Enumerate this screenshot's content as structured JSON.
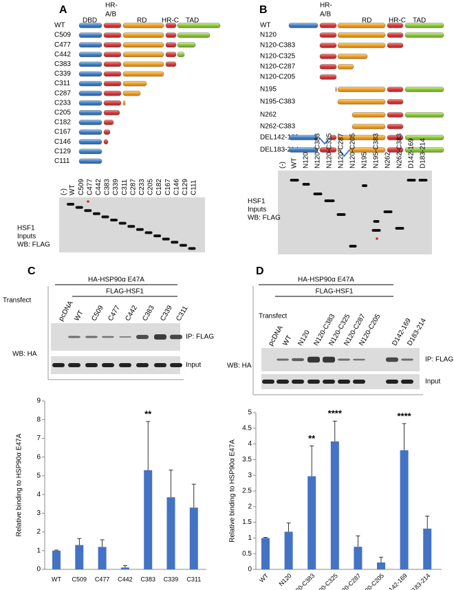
{
  "panels": {
    "A": {
      "label": "A",
      "domains": {
        "dbd": "DBD",
        "hr_ab": [
          "HR-",
          "A/B"
        ],
        "rd": "RD",
        "hr_c": "HR-C",
        "tad": "TAD"
      },
      "constructs": [
        "WT",
        "C509",
        "C477",
        "C442",
        "C383",
        "C339",
        "C311",
        "C287",
        "C233",
        "C205",
        "C182",
        "C167",
        "C146",
        "C129",
        "C111"
      ],
      "gel": {
        "lanes": [
          "(-)",
          "WT",
          "C509",
          "C477",
          "C442",
          "C383",
          "C339",
          "C311",
          "C287",
          "C233",
          "C205",
          "C182",
          "C167",
          "C146",
          "C129",
          "C111"
        ],
        "caption": [
          "HSF1",
          "Inputs",
          "WB: FLAG"
        ]
      }
    },
    "B": {
      "label": "B",
      "domains": {
        "hr_ab": [
          "HR-",
          "A/B"
        ],
        "rd": "RD",
        "hr_c": "HR-C",
        "tad": "TAD"
      },
      "constructs": [
        "WT",
        "N120",
        "N120-C383",
        "N120-C325",
        "N120-C287",
        "N120-C205",
        "N195",
        "N195-C383",
        "N262",
        "N262-C383",
        "DEL142-169",
        "DEL183-214"
      ],
      "gel": {
        "lanes": [
          "(-)",
          "WT",
          "N120",
          "N120-C383",
          "N120-C325",
          "N120-C287",
          "N120-C205",
          "N195",
          "N195-C383",
          "N262",
          "N262-C383",
          "D142-169",
          "D183-214"
        ],
        "caption": [
          "HSF1",
          "Inputs",
          "WB: FLAG"
        ]
      }
    },
    "C": {
      "label": "C",
      "bait": "HA-HSP90α E47A",
      "prey": "FLAG-HSF1",
      "transfect": "Transfect",
      "lanes": [
        "pcDNA",
        "WT",
        "C509",
        "C477",
        "C442",
        "C383",
        "C339",
        "C311"
      ],
      "blots": [
        "IP: FLAG",
        "Input"
      ],
      "wb": "WB: HA"
    },
    "D": {
      "label": "D",
      "bait": "HA-HSP90α E47A",
      "prey": "FLAG-HSF1",
      "transfect": "Transfect",
      "lanes": [
        "pcDNA",
        "WT",
        "N120",
        "N120-C383",
        "N120-C325",
        "N120-C287",
        "N120-C205",
        "D142-169",
        "D183-214"
      ],
      "blots": [
        "IP: FLAG",
        "Input"
      ],
      "wb": "WB: HA"
    }
  },
  "chart_data": [
    {
      "type": "bar",
      "y_label": "Relative binding to HSP90α E47A",
      "categories": [
        "WT",
        "C509",
        "C477",
        "C442",
        "C383",
        "C339",
        "C311"
      ],
      "values": [
        1.0,
        1.3,
        1.2,
        0.1,
        5.3,
        3.85,
        3.3
      ],
      "errors": [
        0.03,
        0.35,
        0.38,
        0.1,
        2.6,
        1.45,
        1.25
      ],
      "color": "#4472c4",
      "ylim": [
        0,
        9
      ],
      "yticks": [
        0,
        1,
        2,
        3,
        4,
        5,
        6,
        7,
        8,
        9
      ],
      "annotations": [
        {
          "text": "**",
          "x": "C383"
        }
      ]
    },
    {
      "type": "bar",
      "y_label": "Relative binding to HSP90α E47A",
      "categories": [
        "WT",
        "N120",
        "N120-C383",
        "N120-C325",
        "N120-C287",
        "N120-C205",
        "Del 142-169",
        "Del183-214"
      ],
      "values": [
        1.0,
        1.2,
        2.97,
        4.08,
        0.72,
        0.22,
        3.8,
        1.3
      ],
      "errors": [
        0.02,
        0.28,
        0.97,
        0.65,
        0.35,
        0.17,
        0.85,
        0.4
      ],
      "color": "#4472c4",
      "ylim": [
        0,
        5
      ],
      "yticks": [
        0,
        0.5,
        1,
        1.5,
        2,
        2.5,
        3,
        3.5,
        4,
        4.5,
        5
      ],
      "annotations": [
        {
          "text": "**",
          "x": "N120-C383"
        },
        {
          "text": "****",
          "x": "N120-C325"
        },
        {
          "text": "****",
          "x": "Del 142-169"
        }
      ]
    }
  ]
}
